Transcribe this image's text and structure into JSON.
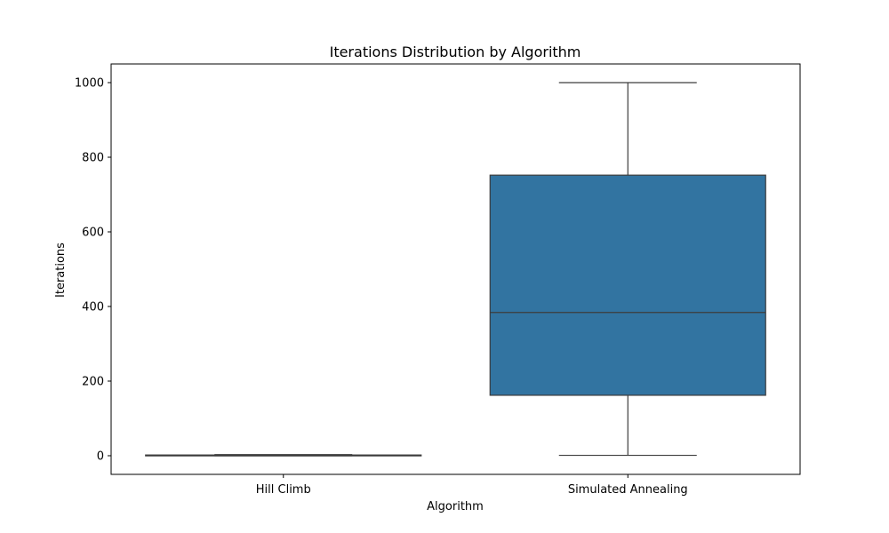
{
  "chart_data": {
    "type": "box",
    "title": "Iterations Distribution by Algorithm",
    "xlabel": "Algorithm",
    "ylabel": "Iterations",
    "ylim": [
      -50,
      1050
    ],
    "yticks": [
      0,
      200,
      400,
      600,
      800,
      1000
    ],
    "categories": [
      "Hill Climb",
      "Simulated Annealing"
    ],
    "series": [
      {
        "name": "Hill Climb",
        "whisker_low": 0,
        "q1": 0,
        "median": 1,
        "q3": 2,
        "whisker_high": 3
      },
      {
        "name": "Simulated Annealing",
        "whisker_low": 1,
        "q1": 162,
        "median": 384,
        "q3": 752,
        "whisker_high": 1000
      }
    ],
    "colors": {
      "box_fill": "#3274a1",
      "line": "#3d3d3d",
      "frame": "#000000"
    }
  }
}
